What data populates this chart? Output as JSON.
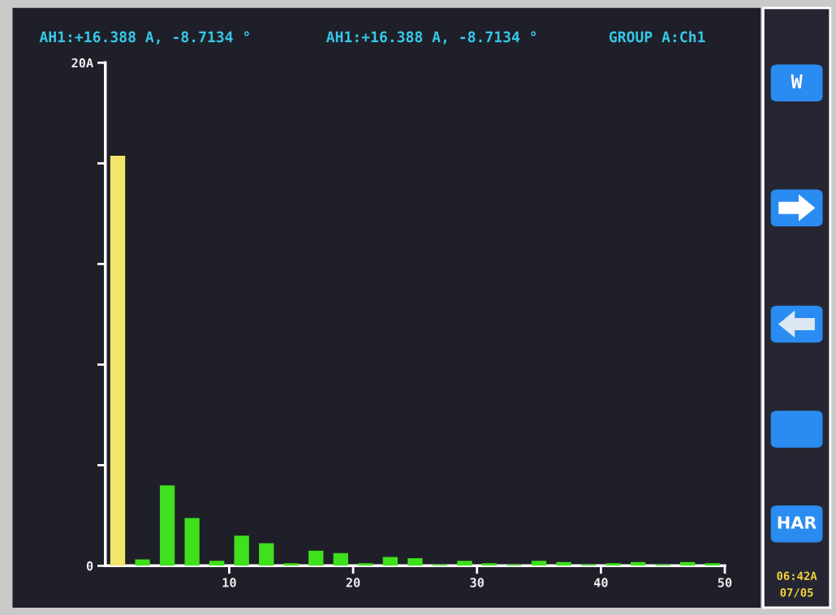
{
  "chart_data": {
    "type": "bar",
    "annotations": [
      "AH1:+16.388 A, -8.7134 °",
      "AH1:+16.388 A, -8.7134 °",
      "GROUP A:Ch1",
      "W",
      "HAR",
      "06:42A",
      "07/05"
    ],
    "x": [
      1,
      3,
      5,
      7,
      9,
      11,
      13,
      15,
      17,
      19,
      21,
      23,
      25,
      27,
      29,
      31,
      33,
      35,
      37,
      39,
      41,
      43,
      45,
      47,
      49
    ],
    "values": [
      16.3,
      0.25,
      3.2,
      1.9,
      0.2,
      1.2,
      0.9,
      0.1,
      0.6,
      0.5,
      0.1,
      0.35,
      0.3,
      0.05,
      0.2,
      0.1,
      0.05,
      0.2,
      0.15,
      0.05,
      0.1,
      0.15,
      0.05,
      0.15,
      0.1
    ],
    "colors": [
      "#f2e66a",
      "#3fe01c",
      "#3fe01c",
      "#3fe01c",
      "#3fe01c",
      "#3fe01c",
      "#3fe01c",
      "#3fe01c",
      "#3fe01c",
      "#3fe01c",
      "#3fe01c",
      "#3fe01c",
      "#3fe01c",
      "#3fe01c",
      "#3fe01c",
      "#3fe01c",
      "#3fe01c",
      "#3fe01c",
      "#3fe01c",
      "#3fe01c",
      "#3fe01c",
      "#3fe01c",
      "#3fe01c",
      "#3fe01c",
      "#3fe01c"
    ],
    "xlim": [
      0,
      50
    ],
    "xticks": [
      10,
      20,
      30,
      40,
      50
    ],
    "ylim": [
      0,
      20
    ],
    "yticks": [
      0,
      {
        "value": 4,
        "label": null
      },
      {
        "value": 8,
        "label": null
      },
      {
        "value": 12,
        "label": null
      },
      {
        "value": 16,
        "label": null
      },
      {
        "value": 20,
        "label": "20A"
      }
    ],
    "grid": false,
    "legend": false
  }
}
